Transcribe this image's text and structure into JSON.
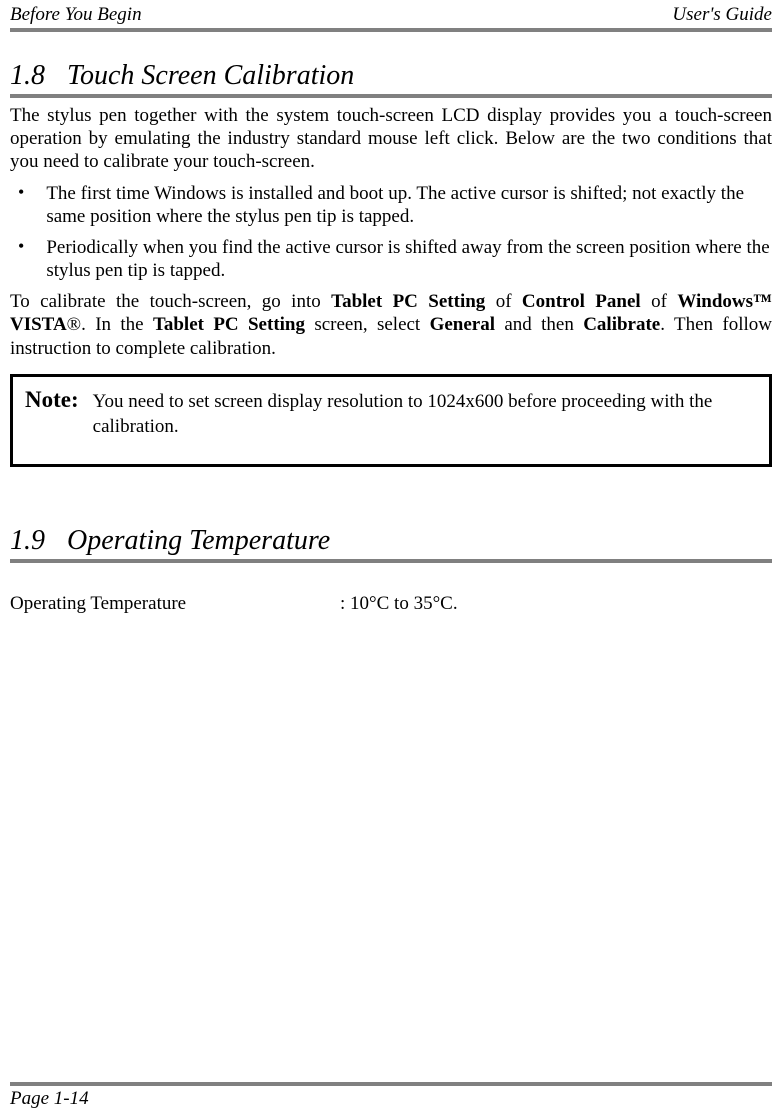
{
  "header": {
    "left": "Before You Begin",
    "right": "User's Guide"
  },
  "section1": {
    "number": "1.8",
    "title": "Touch Screen Calibration",
    "paragraph1": "The stylus pen together with the system touch-screen LCD display provides you a touch-screen operation by emulating the industry standard mouse left click. Below are the two conditions that you need to calibrate your touch-screen.",
    "bullets": [
      "The first time Windows is installed and boot up. The active cursor is shifted; not exactly the same position where the stylus pen tip is tapped.",
      "Periodically when you find the active cursor is shifted away from the screen position where the stylus pen tip is tapped."
    ],
    "paragraph2_pre": "To calibrate the touch-screen, go into ",
    "paragraph2_b1": "Tablet PC Setting",
    "paragraph2_mid1": " of ",
    "paragraph2_b2": "Control Panel",
    "paragraph2_mid2": " of ",
    "paragraph2_b3": "Windows™ VISTA",
    "paragraph2_mid3": "®. In the ",
    "paragraph2_b4": "Tablet PC Setting",
    "paragraph2_mid4": " screen, select ",
    "paragraph2_b5": "General",
    "paragraph2_mid5": " and then ",
    "paragraph2_b6": "Calibrate",
    "paragraph2_end": ". Then follow instruction to complete calibration.",
    "note_label": "Note:",
    "note_text": "You need to set screen display resolution to 1024x600 before proceeding with the calibration."
  },
  "section2": {
    "number": "1.9",
    "title": "Operating Temperature",
    "spec_label": "Operating Temperature",
    "spec_value": ": 10°C to 35°C."
  },
  "footer": {
    "page": "Page 1-14"
  },
  "colors": {
    "divider": "#808080",
    "text": "#000000",
    "background": "#ffffff",
    "note_border": "#000000"
  },
  "typography": {
    "body_fontsize": 19,
    "heading_fontsize": 28,
    "note_label_fontsize": 23,
    "font_family": "Times New Roman"
  }
}
